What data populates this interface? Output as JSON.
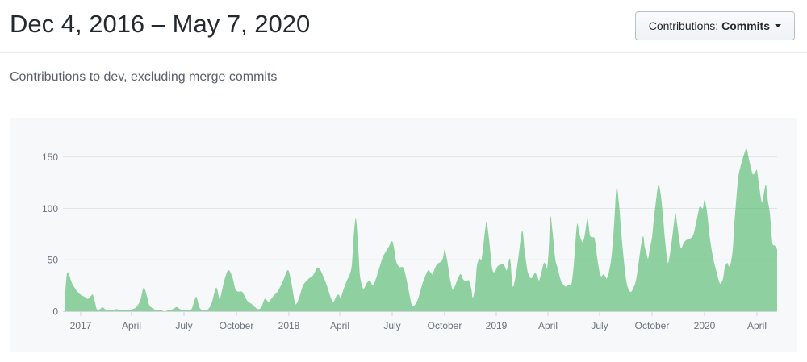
{
  "header": {
    "title": "Dec 4, 2016 – May 7, 2020",
    "filter_button": {
      "prefix": "Contributions:",
      "value": "Commits"
    }
  },
  "subtitle": "Contributions to dev, excluding merge commits",
  "chart_data": {
    "type": "area",
    "series_name": "Commits",
    "title": "Contributions to dev, excluding merge commits",
    "xlabel": "",
    "ylabel": "",
    "date_range": {
      "start": "Dec 4, 2016",
      "end": "May 7, 2020"
    },
    "t_axis_note": "t = px offset along 883px timeline from Dec 4 2016 (t0) to May 7 2020 (t=883)",
    "ylim": [
      0,
      160
    ],
    "grid": "horizontal",
    "legend": "none",
    "y_ticks": [
      0,
      50,
      100,
      150
    ],
    "x_ticks": [
      {
        "label": "2017",
        "t": 20
      },
      {
        "label": "April",
        "t": 83
      },
      {
        "label": "July",
        "t": 148
      },
      {
        "label": "October",
        "t": 213
      },
      {
        "label": "2018",
        "t": 278
      },
      {
        "label": "April",
        "t": 341
      },
      {
        "label": "July",
        "t": 406
      },
      {
        "label": "October",
        "t": 471
      },
      {
        "label": "2019",
        "t": 535
      },
      {
        "label": "April",
        "t": 599
      },
      {
        "label": "July",
        "t": 663
      },
      {
        "label": "October",
        "t": 728
      },
      {
        "label": "2020",
        "t": 793
      },
      {
        "label": "April",
        "t": 858
      }
    ],
    "colors": {
      "fill": "#28a745",
      "fill_opacity": 0.5,
      "panel_bg": "#f6f8fa",
      "grid": "#e1e4e8",
      "axis": "#d1d5da",
      "tick_label": "#6a737d"
    },
    "points": [
      [
        0,
        6
      ],
      [
        2,
        30
      ],
      [
        4,
        38
      ],
      [
        8,
        30
      ],
      [
        10,
        26
      ],
      [
        15,
        20
      ],
      [
        20,
        16
      ],
      [
        25,
        14
      ],
      [
        29,
        12
      ],
      [
        33,
        15
      ],
      [
        35,
        16
      ],
      [
        38,
        8
      ],
      [
        40,
        2
      ],
      [
        44,
        2
      ],
      [
        47,
        4
      ],
      [
        50,
        2
      ],
      [
        54,
        1
      ],
      [
        59,
        1
      ],
      [
        64,
        2
      ],
      [
        69,
        1
      ],
      [
        74,
        1
      ],
      [
        79,
        1
      ],
      [
        84,
        2
      ],
      [
        89,
        4
      ],
      [
        94,
        11
      ],
      [
        98,
        23
      ],
      [
        102,
        15
      ],
      [
        105,
        6
      ],
      [
        109,
        3
      ],
      [
        114,
        1
      ],
      [
        119,
        1
      ],
      [
        124,
        0
      ],
      [
        129,
        1
      ],
      [
        134,
        2
      ],
      [
        139,
        4
      ],
      [
        143,
        2
      ],
      [
        148,
        1
      ],
      [
        154,
        1
      ],
      [
        158,
        3
      ],
      [
        163,
        14
      ],
      [
        167,
        4
      ],
      [
        171,
        1
      ],
      [
        175,
        1
      ],
      [
        179,
        3
      ],
      [
        183,
        10
      ],
      [
        188,
        23
      ],
      [
        192,
        12
      ],
      [
        195,
        20
      ],
      [
        198,
        30
      ],
      [
        203,
        40
      ],
      [
        208,
        33
      ],
      [
        212,
        21
      ],
      [
        217,
        19
      ],
      [
        220,
        19
      ],
      [
        225,
        12
      ],
      [
        228,
        9
      ],
      [
        232,
        7
      ],
      [
        236,
        4
      ],
      [
        240,
        2
      ],
      [
        244,
        4
      ],
      [
        248,
        12
      ],
      [
        253,
        9
      ],
      [
        256,
        12
      ],
      [
        260,
        16
      ],
      [
        263,
        18
      ],
      [
        268,
        25
      ],
      [
        272,
        32
      ],
      [
        277,
        40
      ],
      [
        281,
        28
      ],
      [
        285,
        10
      ],
      [
        287,
        7
      ],
      [
        291,
        14
      ],
      [
        295,
        24
      ],
      [
        298,
        28
      ],
      [
        303,
        32
      ],
      [
        308,
        35
      ],
      [
        313,
        42
      ],
      [
        317,
        40
      ],
      [
        321,
        33
      ],
      [
        325,
        25
      ],
      [
        330,
        13
      ],
      [
        333,
        9
      ],
      [
        337,
        15
      ],
      [
        340,
        16
      ],
      [
        342,
        13
      ],
      [
        346,
        22
      ],
      [
        350,
        30
      ],
      [
        353,
        35
      ],
      [
        356,
        45
      ],
      [
        358,
        70
      ],
      [
        361,
        90
      ],
      [
        364,
        60
      ],
      [
        366,
        35
      ],
      [
        369,
        24
      ],
      [
        371,
        22
      ],
      [
        375,
        28
      ],
      [
        379,
        29
      ],
      [
        382,
        25
      ],
      [
        386,
        32
      ],
      [
        390,
        42
      ],
      [
        394,
        52
      ],
      [
        398,
        58
      ],
      [
        402,
        63
      ],
      [
        406,
        68
      ],
      [
        409,
        58
      ],
      [
        411,
        48
      ],
      [
        415,
        43
      ],
      [
        419,
        43
      ],
      [
        421,
        40
      ],
      [
        424,
        30
      ],
      [
        426,
        22
      ],
      [
        429,
        10
      ],
      [
        431,
        5
      ],
      [
        434,
        6
      ],
      [
        438,
        12
      ],
      [
        441,
        20
      ],
      [
        444,
        28
      ],
      [
        448,
        36
      ],
      [
        451,
        40
      ],
      [
        454,
        37
      ],
      [
        456,
        36
      ],
      [
        459,
        42
      ],
      [
        462,
        46
      ],
      [
        466,
        48
      ],
      [
        469,
        52
      ],
      [
        471,
        60
      ],
      [
        474,
        50
      ],
      [
        478,
        30
      ],
      [
        481,
        21
      ],
      [
        484,
        25
      ],
      [
        488,
        33
      ],
      [
        491,
        36
      ],
      [
        494,
        31
      ],
      [
        498,
        29
      ],
      [
        501,
        30
      ],
      [
        504,
        22
      ],
      [
        506,
        13
      ],
      [
        509,
        25
      ],
      [
        511,
        44
      ],
      [
        514,
        51
      ],
      [
        517,
        52
      ],
      [
        521,
        78
      ],
      [
        523,
        87
      ],
      [
        526,
        70
      ],
      [
        528,
        55
      ],
      [
        530,
        41
      ],
      [
        533,
        38
      ],
      [
        536,
        43
      ],
      [
        539,
        45
      ],
      [
        543,
        46
      ],
      [
        546,
        43
      ],
      [
        548,
        40
      ],
      [
        552,
        51
      ],
      [
        555,
        25
      ],
      [
        558,
        30
      ],
      [
        562,
        50
      ],
      [
        567,
        78
      ],
      [
        570,
        60
      ],
      [
        573,
        42
      ],
      [
        575,
        36
      ],
      [
        578,
        32
      ],
      [
        581,
        35
      ],
      [
        583,
        37
      ],
      [
        586,
        34
      ],
      [
        588,
        30
      ],
      [
        591,
        38
      ],
      [
        594,
        47
      ],
      [
        596,
        45
      ],
      [
        598,
        42
      ],
      [
        600,
        60
      ],
      [
        602,
        92
      ],
      [
        605,
        75
      ],
      [
        608,
        51
      ],
      [
        611,
        42
      ],
      [
        615,
        30
      ],
      [
        618,
        26
      ],
      [
        621,
        24
      ],
      [
        625,
        26
      ],
      [
        628,
        26
      ],
      [
        631,
        45
      ],
      [
        635,
        84
      ],
      [
        638,
        75
      ],
      [
        642,
        67
      ],
      [
        645,
        76
      ],
      [
        648,
        90
      ],
      [
        651,
        74
      ],
      [
        654,
        72
      ],
      [
        657,
        70
      ],
      [
        660,
        52
      ],
      [
        663,
        38
      ],
      [
        665,
        34
      ],
      [
        668,
        36
      ],
      [
        670,
        34
      ],
      [
        672,
        32
      ],
      [
        675,
        40
      ],
      [
        678,
        55
      ],
      [
        681,
        85
      ],
      [
        684,
        120
      ],
      [
        687,
        105
      ],
      [
        690,
        75
      ],
      [
        693,
        50
      ],
      [
        696,
        30
      ],
      [
        699,
        21
      ],
      [
        702,
        19
      ],
      [
        705,
        23
      ],
      [
        708,
        30
      ],
      [
        711,
        45
      ],
      [
        714,
        62
      ],
      [
        717,
        73
      ],
      [
        719,
        62
      ],
      [
        721,
        57
      ],
      [
        723,
        51
      ],
      [
        725,
        60
      ],
      [
        728,
        72
      ],
      [
        730,
        88
      ],
      [
        733,
        108
      ],
      [
        736,
        123
      ],
      [
        739,
        112
      ],
      [
        742,
        88
      ],
      [
        744,
        70
      ],
      [
        746,
        55
      ],
      [
        748,
        47
      ],
      [
        751,
        60
      ],
      [
        754,
        78
      ],
      [
        757,
        95
      ],
      [
        759,
        85
      ],
      [
        762,
        68
      ],
      [
        764,
        61
      ],
      [
        767,
        66
      ],
      [
        770,
        69
      ],
      [
        773,
        70
      ],
      [
        776,
        71
      ],
      [
        779,
        74
      ],
      [
        781,
        80
      ],
      [
        784,
        91
      ],
      [
        787,
        102
      ],
      [
        789,
        101
      ],
      [
        791,
        100
      ],
      [
        793,
        108
      ],
      [
        796,
        97
      ],
      [
        799,
        75
      ],
      [
        802,
        59
      ],
      [
        805,
        47
      ],
      [
        808,
        38
      ],
      [
        811,
        29
      ],
      [
        813,
        27
      ],
      [
        816,
        32
      ],
      [
        818,
        42
      ],
      [
        821,
        47
      ],
      [
        823,
        44
      ],
      [
        825,
        45
      ],
      [
        828,
        60
      ],
      [
        830,
        85
      ],
      [
        833,
        115
      ],
      [
        835,
        131
      ],
      [
        838,
        142
      ],
      [
        841,
        150
      ],
      [
        845,
        158
      ],
      [
        848,
        148
      ],
      [
        851,
        138
      ],
      [
        853,
        133
      ],
      [
        856,
        135
      ],
      [
        858,
        137
      ],
      [
        861,
        120
      ],
      [
        864,
        106
      ],
      [
        866,
        112
      ],
      [
        869,
        123
      ],
      [
        871,
        110
      ],
      [
        874,
        95
      ],
      [
        877,
        67
      ],
      [
        880,
        64
      ],
      [
        883,
        60
      ]
    ]
  }
}
